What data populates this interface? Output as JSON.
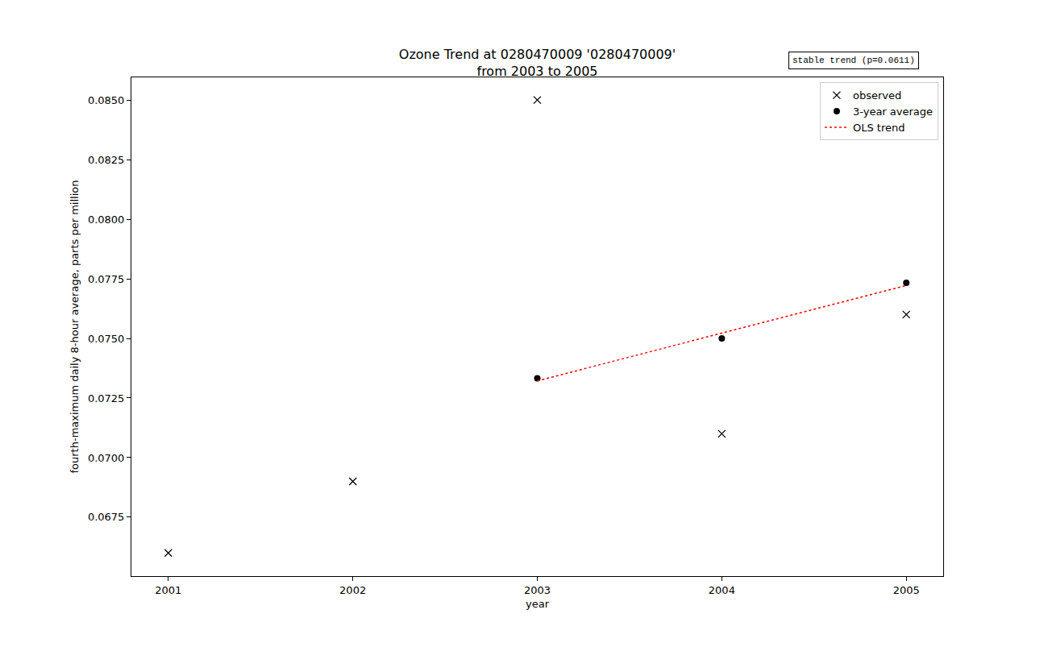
{
  "chart_data": {
    "type": "scatter",
    "title": "Ozone Trend at 0280470009 '0280470009'\nfrom 2003 to 2005",
    "x_label": "year",
    "y_label": "fourth-maximum daily 8-hour average, parts per million",
    "annotation": "stable trend (p=0.0611)",
    "xlim": [
      2000.8,
      2005.2
    ],
    "xticks": [
      2001,
      2002,
      2003,
      2004,
      2005
    ],
    "ylim": [
      0.06503,
      0.08595
    ],
    "yticks": [
      0.0675,
      {
        "value": 0.07,
        "label": "0.0700"
      },
      0.0725,
      {
        "value": 0.075,
        "label": "0.0750"
      },
      0.0775,
      {
        "value": 0.08,
        "label": "0.0800"
      },
      0.0825,
      {
        "value": 0.085,
        "label": "0.0850"
      }
    ],
    "grid": false,
    "legend": "upper right",
    "series": [
      {
        "name": "observed",
        "type": "scatter",
        "marker": "x",
        "color": "#000000",
        "x": [
          2001,
          2002,
          2003,
          2004,
          2005
        ],
        "values": [
          0.066,
          0.069,
          0.085,
          0.071,
          0.076
        ]
      },
      {
        "name": "3-year average",
        "type": "scatter",
        "marker": "circle",
        "color": "#000000",
        "x": [
          2003,
          2004,
          2005
        ],
        "values": [
          0.07333,
          0.075,
          0.07733
        ]
      },
      {
        "name": "OLS trend",
        "type": "line",
        "line_style": "dotted",
        "color": "#ff0000",
        "x": [
          2003,
          2005
        ],
        "values": [
          0.07322,
          0.07722
        ]
      }
    ]
  }
}
